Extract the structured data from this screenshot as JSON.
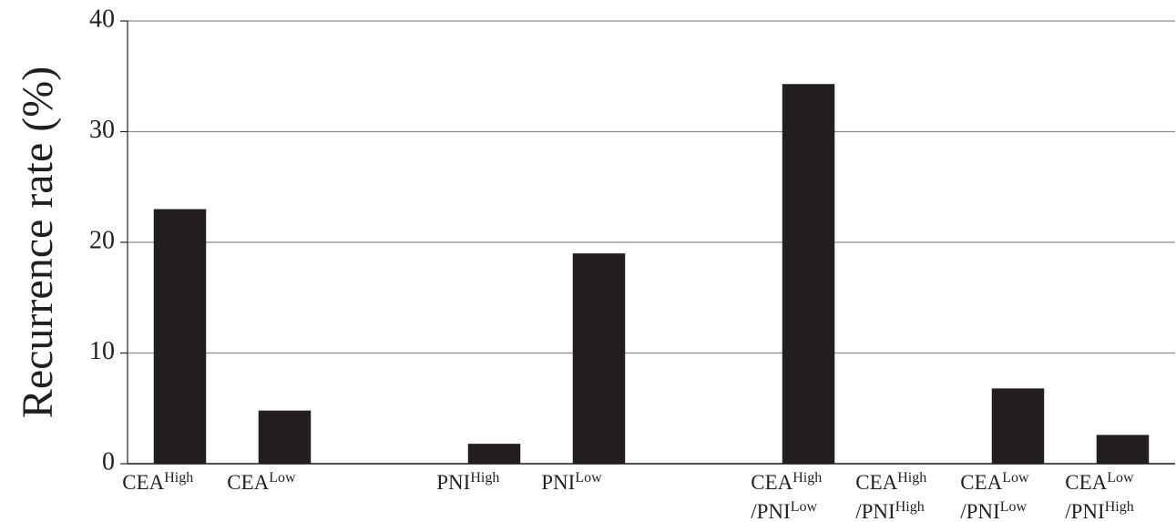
{
  "chart_data": {
    "type": "bar",
    "y_label": "Recurrence rate (%)",
    "categories": [
      [
        [
          "CEA",
          "High"
        ]
      ],
      [
        [
          "CEA",
          "Low"
        ]
      ],
      null,
      [
        [
          "PNI",
          "High"
        ]
      ],
      [
        [
          "PNI",
          "Low"
        ]
      ],
      null,
      [
        [
          "CEA",
          "High"
        ],
        [
          "/PNI",
          "Low"
        ]
      ],
      [
        [
          "CEA",
          "High"
        ],
        [
          "/PNI",
          "High"
        ]
      ],
      [
        [
          "CEA",
          "Low"
        ],
        [
          "/PNI",
          "Low"
        ]
      ],
      [
        [
          "CEA",
          "Low"
        ],
        [
          "/PNI",
          "High"
        ]
      ]
    ],
    "values": [
      23,
      4.8,
      null,
      1.8,
      19,
      null,
      34.3,
      0,
      6.8,
      2.6
    ],
    "color": "#231f20",
    "ylim": [
      0,
      40
    ],
    "yticks": [
      0,
      10,
      20,
      30,
      40
    ],
    "grid": true
  }
}
